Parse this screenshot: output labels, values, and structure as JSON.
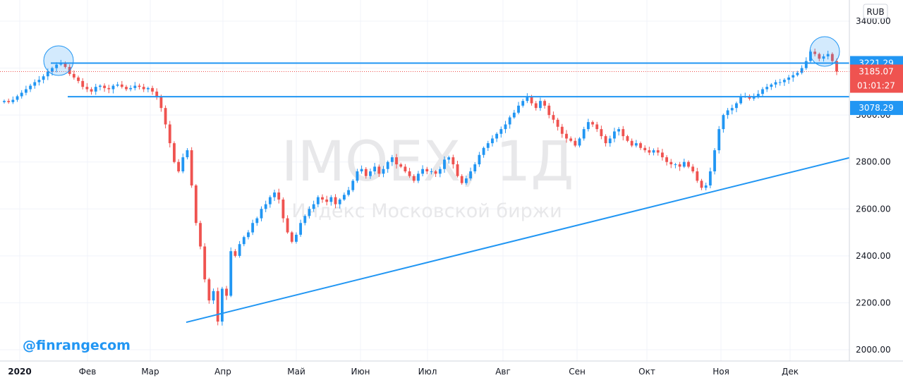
{
  "chart_data": {
    "type": "candlestick",
    "symbol": "IMOEX",
    "timeframe": "1Д",
    "description": "Индекс Московской биржи",
    "currency": "RUB",
    "year_label": "2020",
    "x_labels": [
      "Фев",
      "Мар",
      "Апр",
      "Май",
      "Июн",
      "Июл",
      "Авг",
      "Сен",
      "Окт",
      "Ноя",
      "Дек"
    ],
    "y_ticks": [
      "2000.00",
      "2200.00",
      "2400.00",
      "2600.00",
      "2800.00",
      "3000.00",
      "3200.00",
      "3400.00"
    ],
    "ylim": [
      1985,
      3420
    ],
    "grid": true,
    "price_tags": {
      "resistance": "3221.29",
      "last_price": "3185.07",
      "countdown": "01:01:27",
      "support": "3078.29"
    },
    "horizontal_levels": [
      3221.29,
      3078.29
    ],
    "trendline": {
      "start": [
        "2020-03-18",
        2117
      ],
      "end": [
        "2020-12-30",
        2818
      ]
    },
    "closes": [
      3060,
      3055,
      3065,
      3080,
      3095,
      3110,
      3125,
      3140,
      3150,
      3165,
      3185,
      3200,
      3215,
      3221,
      3205,
      3175,
      3160,
      3145,
      3120,
      3110,
      3100,
      3120,
      3125,
      3115,
      3110,
      3125,
      3130,
      3120,
      3110,
      3115,
      3125,
      3120,
      3110,
      3115,
      3100,
      3080,
      3030,
      2960,
      2880,
      2800,
      2760,
      2820,
      2850,
      2700,
      2540,
      2440,
      2300,
      2210,
      2250,
      2120,
      2260,
      2230,
      2420,
      2400,
      2450,
      2480,
      2500,
      2540,
      2560,
      2600,
      2620,
      2650,
      2670,
      2640,
      2560,
      2500,
      2460,
      2490,
      2540,
      2570,
      2600,
      2620,
      2650,
      2640,
      2630,
      2650,
      2620,
      2640,
      2660,
      2680,
      2720,
      2760,
      2770,
      2740,
      2760,
      2780,
      2750,
      2770,
      2800,
      2820,
      2790,
      2780,
      2760,
      2740,
      2720,
      2750,
      2770,
      2760,
      2760,
      2750,
      2770,
      2810,
      2820,
      2790,
      2740,
      2710,
      2730,
      2760,
      2790,
      2830,
      2860,
      2880,
      2900,
      2920,
      2940,
      2960,
      2990,
      3010,
      3040,
      3060,
      3080,
      3050,
      3030,
      3060,
      3040,
      3000,
      2980,
      2950,
      2920,
      2900,
      2890,
      2870,
      2900,
      2940,
      2970,
      2960,
      2940,
      2910,
      2880,
      2900,
      2930,
      2940,
      2910,
      2890,
      2870,
      2880,
      2860,
      2850,
      2840,
      2850,
      2840,
      2820,
      2800,
      2790,
      2790,
      2780,
      2800,
      2780,
      2760,
      2720,
      2690,
      2700,
      2760,
      2850,
      2940,
      3000,
      3020,
      3030,
      3050,
      3080,
      3080,
      3070,
      3080,
      3090,
      3110,
      3120,
      3130,
      3140,
      3140,
      3150,
      3160,
      3170,
      3180,
      3200,
      3230,
      3270,
      3260,
      3240,
      3250,
      3260,
      3230,
      3185
    ]
  },
  "watermark": {
    "symbol_line": "IMOEX, 1Д",
    "description": "Индекс Московской биржи"
  },
  "branding": {
    "handle": "@finrangecom"
  },
  "colors": {
    "up": "#2196f3",
    "down": "#ef5350",
    "line": "#2196f3",
    "last_tag": "#ef5350",
    "grid": "#f0f3fa"
  }
}
